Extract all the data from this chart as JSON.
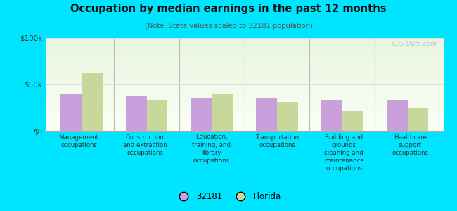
{
  "title": "Occupation by median earnings in the past 12 months",
  "subtitle": "(Note: State values scaled to 32181 population)",
  "categories": [
    "Management\noccupations",
    "Construction\nand extraction\noccupations",
    "Education,\ntraining, and\nlibrary\noccupations",
    "Transportation\noccupations",
    "Building and\ngrounds\ncleaning and\nmaintenance\noccupations",
    "Healthcare\nsupport\noccupations"
  ],
  "values_32181": [
    40000,
    37000,
    35000,
    35000,
    33000,
    33000
  ],
  "values_florida": [
    62000,
    33000,
    40000,
    31000,
    21000,
    25000
  ],
  "color_32181": "#c9a0dc",
  "color_florida": "#c8d89a",
  "ylim": [
    0,
    100000
  ],
  "ytick_labels": [
    "$0",
    "$50k",
    "$100k"
  ],
  "outer_bg": "#00e5ff",
  "chart_bg_top": "#e8f5e0",
  "chart_bg_bottom": "#f8fff0",
  "legend_label_32181": "32181",
  "legend_label_florida": "Florida",
  "watermark": "City-Data.com",
  "separator_color": "#bbbbbb",
  "grid_color": "#dddddd",
  "bottom_spine_color": "#aaaaaa"
}
